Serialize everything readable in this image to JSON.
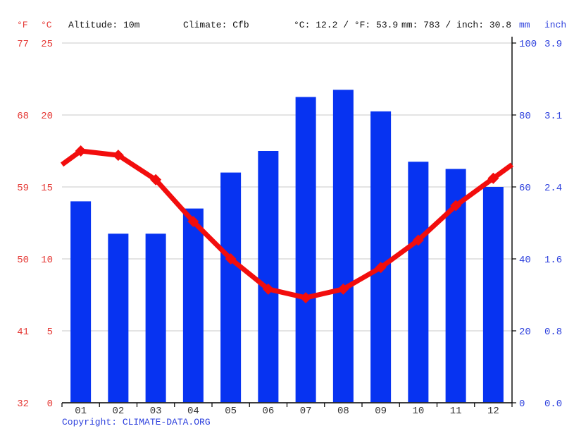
{
  "header": {
    "f_label": "°F",
    "c_label": "°C",
    "altitude": "Altitude: 10m",
    "climate": "Climate: Cfb",
    "temperature_summary": "°C: 12.2 / °F: 53.9",
    "precipitation_summary": "mm: 783 / inch: 30.8",
    "mm_label": "mm",
    "inch_label": "inch"
  },
  "copyright": "Copyright: CLIMATE-DATA.ORG",
  "colors": {
    "bar": "#0733f1",
    "line": "#f20d0d",
    "red_text": "#e53935",
    "blue_text": "#2e41dd",
    "dark_text": "#111111",
    "month_text": "#333333",
    "grid": "#c9c9c9",
    "axis": "#000000",
    "background": "#ffffff"
  },
  "chart_data": {
    "type": "bar",
    "categories": [
      "01",
      "02",
      "03",
      "04",
      "05",
      "06",
      "07",
      "08",
      "09",
      "10",
      "11",
      "12"
    ],
    "series": [
      {
        "name": "Precipitation (mm)",
        "type": "bar",
        "values": [
          56,
          47,
          47,
          54,
          64,
          70,
          85,
          87,
          81,
          67,
          65,
          60
        ]
      },
      {
        "name": "Temperature (°C)",
        "type": "line",
        "values": [
          17.5,
          17.2,
          15.5,
          12.6,
          10.0,
          7.9,
          7.3,
          7.9,
          9.4,
          11.3,
          13.7,
          15.6
        ]
      }
    ],
    "edge_temp": 16.55,
    "axes": {
      "left_f_ticks": [
        "77",
        "68",
        "59",
        "50",
        "41",
        "32"
      ],
      "left_c_ticks": [
        "25",
        "20",
        "15",
        "10",
        "5",
        "0"
      ],
      "right_mm_ticks": [
        "100",
        "80",
        "60",
        "40",
        "20",
        "0"
      ],
      "right_inch_ticks": [
        "3.9",
        "3.1",
        "2.4",
        "1.6",
        "0.8",
        "0.0"
      ]
    },
    "ylim_temp": [
      0,
      25
    ],
    "ylim_precip": [
      0,
      100
    ],
    "grid": true,
    "legend": "none"
  }
}
